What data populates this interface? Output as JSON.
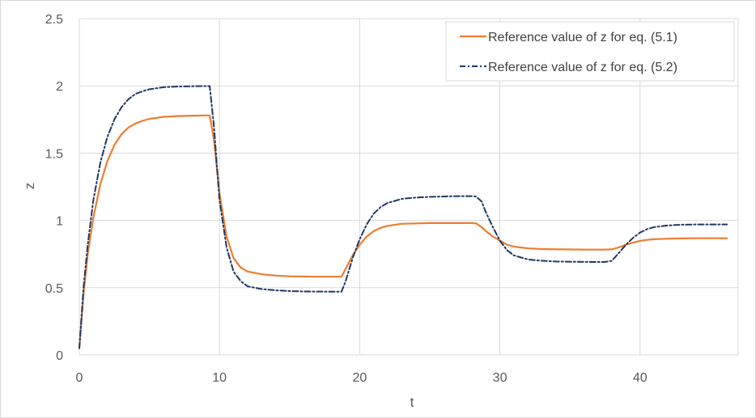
{
  "chart_data": {
    "type": "line",
    "title": "",
    "xlabel": "t",
    "ylabel": "z",
    "xlim": [
      0,
      47
    ],
    "ylim": [
      0,
      2.5
    ],
    "x_ticks": [
      0,
      10,
      20,
      30,
      40
    ],
    "x_tick_labels": [
      "0",
      "10",
      "20",
      "30",
      "40"
    ],
    "y_ticks": [
      0,
      0.5,
      1,
      1.5,
      2,
      2.5
    ],
    "y_tick_labels": [
      "0",
      "0.5",
      "1",
      "1.5",
      "2",
      "2.5"
    ],
    "grid": "on",
    "legend_position": "top-right",
    "series": [
      {
        "name": "Reference value of z for eq. (5.1)",
        "color": "#ed7d31",
        "style": "solid",
        "x": [
          0,
          0.3,
          0.6,
          1,
          1.5,
          2,
          2.5,
          3,
          3.5,
          4,
          4.5,
          5,
          6,
          7,
          8,
          9,
          9.3,
          9.6,
          10,
          10.5,
          11,
          11.5,
          12,
          13,
          14,
          15,
          16,
          17,
          18,
          18.7,
          19,
          19.5,
          20,
          20.5,
          21,
          21.5,
          22,
          23,
          24,
          25,
          26,
          27,
          28,
          28.3,
          28.7,
          29,
          29.5,
          30,
          30.5,
          31,
          32,
          33,
          34,
          35,
          36,
          37,
          37.5,
          38,
          38.5,
          39,
          39.5,
          40,
          40.5,
          41,
          42,
          43,
          44,
          45,
          46.2
        ],
        "y": [
          0.05,
          0.45,
          0.75,
          1.02,
          1.27,
          1.44,
          1.56,
          1.64,
          1.69,
          1.72,
          1.74,
          1.755,
          1.77,
          1.775,
          1.778,
          1.78,
          1.78,
          1.6,
          1.2,
          0.88,
          0.72,
          0.65,
          0.62,
          0.6,
          0.59,
          0.585,
          0.583,
          0.582,
          0.582,
          0.582,
          0.64,
          0.74,
          0.82,
          0.88,
          0.92,
          0.945,
          0.96,
          0.975,
          0.978,
          0.98,
          0.98,
          0.98,
          0.98,
          0.978,
          0.95,
          0.92,
          0.88,
          0.85,
          0.82,
          0.805,
          0.792,
          0.787,
          0.785,
          0.784,
          0.783,
          0.783,
          0.783,
          0.785,
          0.8,
          0.82,
          0.835,
          0.848,
          0.855,
          0.86,
          0.864,
          0.866,
          0.867,
          0.867,
          0.867
        ]
      },
      {
        "name": "Reference value of z for eq. (5.2)",
        "color": "#1f3864",
        "style": "dash-dot",
        "x": [
          0,
          0.3,
          0.6,
          1,
          1.5,
          2,
          2.5,
          3,
          3.5,
          4,
          4.5,
          5,
          6,
          7,
          8,
          9,
          9.3,
          9.6,
          10,
          10.5,
          11,
          11.5,
          12,
          13,
          14,
          15,
          16,
          17,
          18,
          18.7,
          19,
          19.5,
          20,
          20.5,
          21,
          21.5,
          22,
          23,
          24,
          25,
          26,
          27,
          28,
          28.3,
          28.7,
          29,
          29.5,
          30,
          30.5,
          31,
          32,
          33,
          34,
          35,
          36,
          37,
          37.5,
          38,
          38.5,
          39,
          39.5,
          40,
          40.5,
          41,
          42,
          43,
          44,
          45,
          46.2
        ],
        "y": [
          0.05,
          0.5,
          0.82,
          1.15,
          1.43,
          1.62,
          1.75,
          1.84,
          1.9,
          1.94,
          1.96,
          1.975,
          1.99,
          1.995,
          1.997,
          1.998,
          1.998,
          1.7,
          1.15,
          0.8,
          0.62,
          0.55,
          0.51,
          0.49,
          0.48,
          0.475,
          0.472,
          0.471,
          0.47,
          0.47,
          0.55,
          0.72,
          0.86,
          0.97,
          1.05,
          1.1,
          1.13,
          1.16,
          1.17,
          1.175,
          1.178,
          1.18,
          1.18,
          1.178,
          1.14,
          1.06,
          0.95,
          0.85,
          0.78,
          0.74,
          0.71,
          0.7,
          0.695,
          0.693,
          0.692,
          0.691,
          0.691,
          0.7,
          0.76,
          0.82,
          0.87,
          0.91,
          0.935,
          0.95,
          0.963,
          0.968,
          0.97,
          0.97,
          0.97
        ]
      }
    ]
  }
}
